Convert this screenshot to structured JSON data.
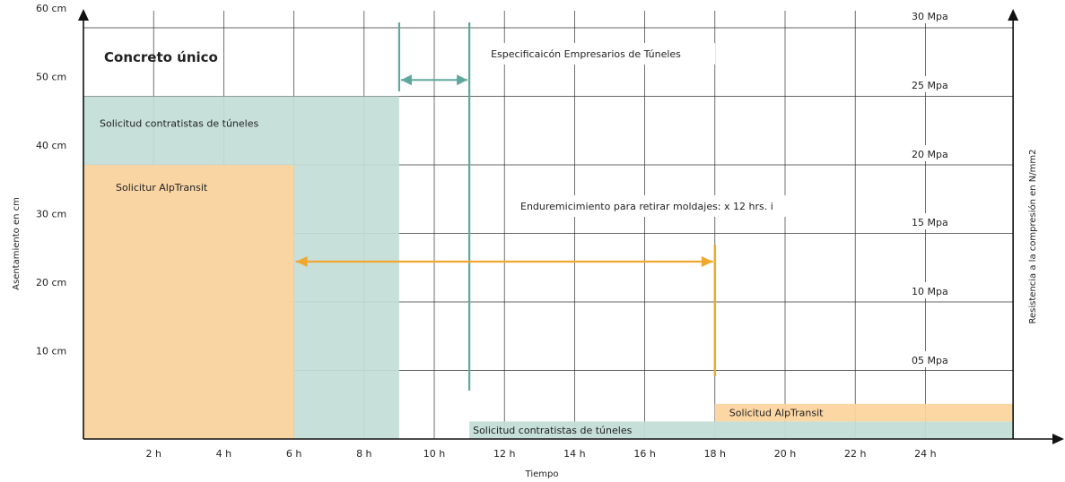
{
  "chart_data": {
    "type": "area",
    "title": "Concreto único",
    "xlabel": "Tiempo",
    "ylabel_left": "Asentamiento en cm",
    "ylabel_right": "Resistencia a la compresión en N/mm2",
    "x_ticks": [
      "2 h",
      "4 h",
      "6 h",
      "8 h",
      "10 h",
      "12 h",
      "14 h",
      "16 h",
      "18 h",
      "20 h",
      "22 h",
      "24 h"
    ],
    "x_tick_values": [
      2,
      4,
      6,
      8,
      10,
      12,
      14,
      16,
      18,
      20,
      22,
      24
    ],
    "xlim": [
      0,
      26.5
    ],
    "y_left_ticks": [
      "10 cm",
      "20 cm",
      "30 cm",
      "40 cm",
      "50 cm",
      "60 cm"
    ],
    "y_left_tick_values": [
      10,
      20,
      30,
      40,
      50,
      60
    ],
    "ylim_left": [
      0,
      70
    ],
    "y_right_ticks": [
      "05 Mpa",
      "10 Mpa",
      "15 Mpa",
      "20 Mpa",
      "25 Mpa",
      "30 Mpa"
    ],
    "y_right_tick_values": [
      5,
      10,
      15,
      20,
      25,
      30
    ],
    "ylim_right": [
      0,
      30
    ],
    "grid": true,
    "slump_regions": [
      {
        "label": "Solicitud contratistas de túneles",
        "x": [
          0,
          9
        ],
        "y_cm": [
          0,
          50
        ],
        "color": "#c3ddd7"
      },
      {
        "label": "Solicitur AlpTransit",
        "x": [
          0,
          6
        ],
        "y_cm": [
          0,
          40
        ],
        "color": "#fcd49e"
      }
    ],
    "strength_regions": [
      {
        "label": "Solicitud contratistas de túneles",
        "x": [
          11,
          26.5
        ],
        "y_mpa": [
          0,
          1.3
        ],
        "color": "#c3ddd7"
      },
      {
        "label": "Solicitud AlpTransit",
        "x": [
          18,
          26.5
        ],
        "y_mpa": [
          1.3,
          2.6
        ],
        "color": "#fcd49e"
      }
    ],
    "annotations": [
      {
        "text": "Especificaicón Empresarios de Túneles",
        "arrow_x": [
          9,
          11
        ],
        "y_cm": 55,
        "color": "#5fa89c"
      },
      {
        "text": "Enduremicimiento para retirar moldajes: x  12 hrs. i",
        "arrow_x": [
          6,
          18
        ],
        "y_cm": 26,
        "color": "#f0a830"
      }
    ],
    "colors": {
      "teal": "#5fa89c",
      "orange": "#f0a830"
    }
  }
}
